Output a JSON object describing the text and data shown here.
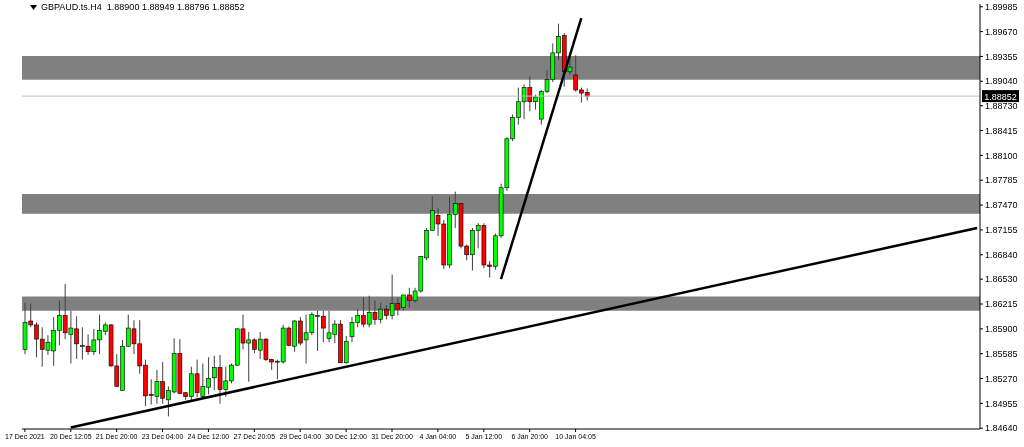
{
  "chart_data": {
    "type": "candlestick",
    "title": "GBPAUD.ts.H4  1.88900 1.88949 1.88796 1.88852",
    "categories": [
      "17 Dec 2021",
      null,
      null,
      null,
      null,
      null,
      null,
      null,
      "20 Dec 12:05",
      null,
      null,
      null,
      null,
      null,
      null,
      null,
      "21 Dec 20:00",
      null,
      null,
      null,
      null,
      null,
      null,
      null,
      "23 Dec 04:00",
      null,
      null,
      null,
      null,
      null,
      null,
      null,
      "24 Dec 12:00",
      null,
      null,
      null,
      null,
      null,
      null,
      null,
      "27 Dec 20:05",
      null,
      null,
      null,
      null,
      null,
      null,
      null,
      "29 Dec 04:00",
      null,
      null,
      null,
      null,
      null,
      null,
      null,
      "30 Dec 12:00",
      null,
      null,
      null,
      null,
      null,
      null,
      null,
      "31 Dec 20:00",
      null,
      null,
      null,
      null,
      null,
      null,
      null,
      "4 Jan 04:00",
      null,
      null,
      null,
      null,
      null,
      null,
      null,
      "5 Jan 12:00",
      null,
      null,
      null,
      null,
      null,
      null,
      null,
      "6 Jan 20:00",
      null,
      null,
      null,
      null,
      null,
      null,
      null,
      "10 Jan 04:05",
      null,
      null,
      null,
      null,
      null,
      null,
      null,
      null,
      null,
      null,
      null,
      null,
      null,
      null,
      null,
      null,
      null,
      null,
      null,
      null,
      null,
      null,
      null,
      null,
      null,
      null,
      null,
      null,
      null,
      null,
      null,
      null,
      null,
      null,
      null,
      null,
      null,
      null,
      null,
      null,
      null,
      null,
      null,
      null,
      null,
      null,
      null,
      null,
      null,
      null,
      null,
      null,
      null,
      null,
      null,
      null,
      null,
      null,
      null,
      null,
      null,
      null,
      null,
      null,
      null,
      null,
      null,
      null,
      null,
      null
    ],
    "ohlc": [
      [
        1.8564,
        1.8623,
        1.8558,
        1.8598
      ],
      [
        1.86,
        1.8622,
        1.8592,
        1.8595
      ],
      [
        1.8595,
        1.8598,
        1.8554,
        1.8577
      ],
      [
        1.8577,
        1.8592,
        1.8542,
        1.8564
      ],
      [
        1.8563,
        1.8582,
        1.8557,
        1.8573
      ],
      [
        1.8562,
        1.8605,
        1.8543,
        1.8588
      ],
      [
        1.8588,
        1.8626,
        1.8569,
        1.8607
      ],
      [
        1.8607,
        1.8647,
        1.8577,
        1.8585
      ],
      [
        1.8583,
        1.8613,
        1.8546,
        1.8591
      ],
      [
        1.859,
        1.8606,
        1.8552,
        1.8571
      ],
      [
        1.8569,
        1.8592,
        1.8551,
        1.8569
      ],
      [
        1.8568,
        1.8583,
        1.8557,
        1.8561
      ],
      [
        1.8561,
        1.859,
        1.8557,
        1.8576
      ],
      [
        1.8576,
        1.8608,
        1.8558,
        1.8588
      ],
      [
        1.8587,
        1.8598,
        1.8582,
        1.8595
      ],
      [
        1.8595,
        1.8596,
        1.8542,
        1.8543
      ],
      [
        1.8543,
        1.8558,
        1.8517,
        1.8517
      ],
      [
        1.8512,
        1.8576,
        1.8512,
        1.8568
      ],
      [
        1.8568,
        1.8608,
        1.8567,
        1.8591
      ],
      [
        1.859,
        1.8601,
        1.8558,
        1.8571
      ],
      [
        1.8571,
        1.8601,
        1.8533,
        1.8543
      ],
      [
        1.8544,
        1.8551,
        1.8492,
        1.8505
      ],
      [
        1.8507,
        1.8526,
        1.8494,
        1.8506
      ],
      [
        1.8504,
        1.8538,
        1.8495,
        1.8523
      ],
      [
        1.8523,
        1.8548,
        1.8495,
        1.8502
      ],
      [
        1.85,
        1.8517,
        1.8479,
        1.8512
      ],
      [
        1.851,
        1.8578,
        1.8508,
        1.8559
      ],
      [
        1.8559,
        1.8577,
        1.8507,
        1.8508
      ],
      [
        1.8509,
        1.851,
        1.85,
        1.8504
      ],
      [
        1.8504,
        1.8542,
        1.8498,
        1.8533
      ],
      [
        1.8533,
        1.8551,
        1.8503,
        1.8509
      ],
      [
        1.8504,
        1.8546,
        1.8502,
        1.8517
      ],
      [
        1.8516,
        1.8554,
        1.8507,
        1.8527
      ],
      [
        1.8528,
        1.8556,
        1.8512,
        1.8541
      ],
      [
        1.8541,
        1.8557,
        1.8495,
        1.8513
      ],
      [
        1.8513,
        1.8542,
        1.8504,
        1.8524
      ],
      [
        1.8524,
        1.8546,
        1.8521,
        1.8544
      ],
      [
        1.8544,
        1.8591,
        1.8543,
        1.859
      ],
      [
        1.859,
        1.8608,
        1.8564,
        1.8572
      ],
      [
        1.8572,
        1.8586,
        1.8523,
        1.8576
      ],
      [
        1.8576,
        1.8578,
        1.8559,
        1.8564
      ],
      [
        1.8563,
        1.8586,
        1.8552,
        1.8577
      ],
      [
        1.8577,
        1.8578,
        1.8549,
        1.8551
      ],
      [
        1.8551,
        1.8552,
        1.8538,
        1.8548
      ],
      [
        1.8549,
        1.8551,
        1.8526,
        1.8549
      ],
      [
        1.8548,
        1.8595,
        1.8546,
        1.8591
      ],
      [
        1.8591,
        1.8593,
        1.8568,
        1.8569
      ],
      [
        1.8568,
        1.8601,
        1.8561,
        1.86
      ],
      [
        1.86,
        1.8605,
        1.8569,
        1.8572
      ],
      [
        1.8576,
        1.8608,
        1.8546,
        1.8585
      ],
      [
        1.8585,
        1.8611,
        1.8582,
        1.8608
      ],
      [
        1.8607,
        1.8613,
        1.8562,
        1.8607
      ],
      [
        1.8606,
        1.8613,
        1.8573,
        1.8591
      ],
      [
        1.8578,
        1.8613,
        1.8573,
        1.8585
      ],
      [
        1.8583,
        1.8601,
        1.8572,
        1.8596
      ],
      [
        1.8596,
        1.8601,
        1.8547,
        1.8547
      ],
      [
        1.8547,
        1.8581,
        1.8546,
        1.8574
      ],
      [
        1.858,
        1.8605,
        1.8573,
        1.8598
      ],
      [
        1.8598,
        1.8615,
        1.8592,
        1.8607
      ],
      [
        1.8607,
        1.863,
        1.8592,
        1.8596
      ],
      [
        1.8596,
        1.8632,
        1.8592,
        1.8611
      ],
      [
        1.8611,
        1.8626,
        1.8595,
        1.8602
      ],
      [
        1.8602,
        1.8623,
        1.8597,
        1.8615
      ],
      [
        1.8615,
        1.862,
        1.8602,
        1.8607
      ],
      [
        1.8607,
        1.8659,
        1.8602,
        1.8622
      ],
      [
        1.8622,
        1.863,
        1.8607,
        1.8615
      ],
      [
        1.8617,
        1.8633,
        1.8613,
        1.8633
      ],
      [
        1.8633,
        1.8642,
        1.8617,
        1.8626
      ],
      [
        1.8626,
        1.8642,
        1.8623,
        1.8638
      ],
      [
        1.8638,
        1.8682,
        1.8636,
        1.8682
      ],
      [
        1.868,
        1.8718,
        1.8677,
        1.8715
      ],
      [
        1.8715,
        1.8758,
        1.8715,
        1.874
      ],
      [
        1.8734,
        1.8743,
        1.8708,
        1.8723
      ],
      [
        1.8723,
        1.8728,
        1.8666,
        1.8671
      ],
      [
        1.8671,
        1.8758,
        1.8667,
        1.8735
      ],
      [
        1.8735,
        1.8764,
        1.8718,
        1.8749
      ],
      [
        1.8749,
        1.8749,
        1.8692,
        1.8695
      ],
      [
        1.8695,
        1.8697,
        1.8677,
        1.8684
      ],
      [
        1.8684,
        1.8718,
        1.8664,
        1.8715
      ],
      [
        1.8715,
        1.8724,
        1.8692,
        1.8721
      ],
      [
        1.8721,
        1.8724,
        1.8667,
        1.8671
      ],
      [
        1.8671,
        1.8676,
        1.8655,
        1.8669
      ],
      [
        1.8669,
        1.8711,
        1.8665,
        1.8708
      ],
      [
        1.8708,
        1.8774,
        1.8705,
        1.8769
      ],
      [
        1.8769,
        1.8833,
        1.8765,
        1.8831
      ],
      [
        1.8831,
        1.8862,
        1.8828,
        1.8858
      ],
      [
        1.8858,
        1.8896,
        1.8849,
        1.8878
      ],
      [
        1.8878,
        1.89,
        1.8856,
        1.8896
      ],
      [
        1.8896,
        1.891,
        1.8866,
        1.8878
      ],
      [
        1.8878,
        1.8887,
        1.8868,
        1.8884
      ],
      [
        1.8856,
        1.8893,
        1.8849,
        1.8891
      ],
      [
        1.8891,
        1.8918,
        1.8889,
        1.8906
      ],
      [
        1.8906,
        1.8952,
        1.8903,
        1.894
      ],
      [
        1.894,
        1.8977,
        1.8931,
        1.8961
      ],
      [
        1.8962,
        1.8965,
        1.8897,
        1.8916
      ],
      [
        1.8916,
        1.8933,
        1.8912,
        1.8922
      ],
      [
        1.8912,
        1.8937,
        1.8891,
        1.8893
      ],
      [
        1.8893,
        1.8896,
        1.8877,
        1.8889
      ],
      [
        1.889,
        1.88949,
        1.88796,
        1.88852
      ],
      null,
      null,
      null,
      null,
      null,
      null,
      null,
      null,
      null,
      null,
      null,
      null,
      null,
      null,
      null,
      null,
      null,
      null,
      null,
      null,
      null,
      null,
      null,
      null,
      null,
      null,
      null,
      null,
      null,
      null,
      null,
      null,
      null,
      null,
      null,
      null,
      null,
      null,
      null,
      null,
      null,
      null,
      null,
      null,
      null,
      null,
      null,
      null,
      null,
      null,
      null,
      null,
      null,
      null,
      null,
      null,
      null,
      null,
      null,
      null,
      null,
      null,
      null,
      null,
      null,
      null,
      null,
      null
    ],
    "colors": [
      "#00ff00",
      "#ff0000",
      "#ff0000",
      "#ff0000",
      "#00ff00",
      "#00ff00",
      "#00ff00",
      "#ff0000",
      "#00ff00",
      "#ff0000",
      "#00ff00",
      "#ff0000",
      "#00ff00",
      "#00ff00",
      "#00ff00",
      "#ff0000",
      "#ff0000",
      "#00ff00",
      "#00ff00",
      "#ff0000",
      "#ff0000",
      "#ff0000",
      "#ff0000",
      "#00ff00",
      "#ff0000",
      "#00ff00",
      "#00ff00",
      "#ff0000",
      "#ff0000",
      "#00ff00",
      "#ff0000",
      "#00ff00",
      "#00ff00",
      "#00ff00",
      "#ff0000",
      "#00ff00",
      "#00ff00",
      "#00ff00",
      "#ff0000",
      "#00ff00",
      "#ff0000",
      "#00ff00",
      "#ff0000",
      "#ff0000",
      "#00ff00",
      "#00ff00",
      "#ff0000",
      "#00ff00",
      "#ff0000",
      "#00ff00",
      "#00ff00",
      "#00ff00",
      "#ff0000",
      "#00ff00",
      "#00ff00",
      "#ff0000",
      "#00ff00",
      "#00ff00",
      "#00ff00",
      "#ff0000",
      "#00ff00",
      "#ff0000",
      "#00ff00",
      "#ff0000",
      "#00ff00",
      "#ff0000",
      "#00ff00",
      "#ff0000",
      "#00ff00",
      "#00ff00",
      "#00ff00",
      "#00ff00",
      "#ff0000",
      "#ff0000",
      "#00ff00",
      "#00ff00",
      "#ff0000",
      "#ff0000",
      "#00ff00",
      "#00ff00",
      "#ff0000",
      "#ff0000",
      "#00ff00",
      "#00ff00",
      "#00ff00",
      "#00ff00",
      "#00ff00",
      "#00ff00",
      "#ff0000",
      "#00ff00",
      "#00ff00",
      "#00ff00",
      "#00ff00",
      "#00ff00",
      "#ff0000",
      "#00ff00",
      "#ff0000",
      "#ff0000",
      "#ff0000",
      null,
      null,
      null,
      null,
      null,
      null,
      null,
      null,
      null,
      null,
      null,
      null,
      null,
      null,
      null,
      null,
      null,
      null,
      null,
      null,
      null,
      null,
      null,
      null,
      null,
      null,
      null,
      null,
      null,
      null,
      null,
      null,
      null,
      null,
      null,
      null,
      null,
      null,
      null,
      null,
      null,
      null,
      null,
      null,
      null,
      null,
      null,
      null,
      null,
      null,
      null,
      null,
      null,
      null,
      null,
      null,
      null,
      null,
      null,
      null,
      null,
      null,
      null,
      null,
      null,
      null,
      null,
      null
    ],
    "series": [
      {
        "type": "line",
        "color": "#000000",
        "values": [
          null,
          null,
          null,
          null,
          null,
          null,
          null,
          null,
          1.8465,
          null,
          null,
          null,
          null,
          null,
          null,
          null,
          null,
          null,
          null,
          null,
          null,
          null,
          null,
          null,
          null,
          null,
          null,
          null,
          null,
          null,
          null,
          null,
          null,
          null,
          null,
          null,
          null,
          null,
          null,
          null,
          null,
          null,
          null,
          null,
          null,
          null,
          null,
          null,
          null,
          null,
          null,
          null,
          null,
          null,
          null,
          null,
          null,
          null,
          null,
          null,
          null,
          null,
          null,
          null,
          null,
          null,
          null,
          null,
          null,
          null,
          null,
          null,
          null,
          null,
          null,
          null,
          null,
          null,
          null,
          null,
          null,
          null,
          null,
          null,
          null,
          null,
          null,
          null,
          null,
          null,
          null,
          null,
          null,
          null,
          null,
          null,
          null,
          null,
          null,
          null,
          null,
          null,
          null,
          null,
          null,
          null,
          null,
          null,
          null,
          null,
          null,
          null,
          null,
          null,
          null,
          null,
          null,
          null,
          null,
          null,
          null,
          null,
          null,
          null,
          null,
          null,
          null,
          null,
          null,
          null,
          null,
          null,
          null,
          null,
          null,
          null,
          null,
          null,
          null,
          null,
          null,
          null,
          null,
          null,
          null,
          null,
          null,
          null,
          null,
          null,
          null,
          null,
          null,
          null,
          null,
          null,
          null,
          null,
          null,
          null,
          null,
          null,
          null,
          null,
          null,
          null,
          1.8718
        ]
      },
      {
        "type": "line",
        "color": "#000000",
        "values": [
          null,
          null,
          null,
          null,
          null,
          null,
          null,
          null,
          null,
          null,
          null,
          null,
          null,
          null,
          null,
          null,
          null,
          null,
          null,
          null,
          null,
          null,
          null,
          null,
          null,
          null,
          null,
          null,
          null,
          null,
          null,
          null,
          null,
          null,
          null,
          null,
          null,
          null,
          null,
          null,
          null,
          null,
          null,
          null,
          null,
          null,
          null,
          null,
          null,
          null,
          null,
          null,
          null,
          null,
          null,
          null,
          null,
          null,
          null,
          null,
          null,
          null,
          null,
          null,
          null,
          null,
          null,
          null,
          null,
          null,
          null,
          null,
          null,
          null,
          null,
          null,
          null,
          null,
          null,
          null,
          null,
          null,
          null,
          1.8653,
          null,
          null,
          null,
          null,
          null,
          null,
          null,
          null,
          null,
          null,
          null,
          null,
          null,
          1.8984,
          null,
          null,
          null,
          null,
          null,
          null,
          null,
          null,
          null,
          null,
          null,
          null,
          null,
          null,
          null,
          null,
          null,
          null,
          null,
          null,
          null,
          null,
          null,
          null,
          null,
          null,
          null,
          null,
          null,
          null,
          null,
          null,
          null,
          null,
          null,
          null,
          null,
          null,
          null,
          null,
          null,
          null,
          null,
          null,
          null,
          null,
          null,
          null,
          null,
          null,
          null,
          null,
          null,
          null,
          null,
          null,
          null,
          null,
          null,
          null,
          null,
          null,
          null,
          null,
          null,
          null,
          null,
          null,
          null
        ]
      }
    ],
    "bands": [
      {
        "axis": "y",
        "from": 1.8906,
        "to": 1.8936,
        "color": "#808080"
      },
      {
        "axis": "y",
        "from": 1.8736,
        "to": 1.8761,
        "color": "#808080"
      },
      {
        "axis": "y",
        "from": 1.8613,
        "to": 1.8631,
        "color": "#808080"
      }
    ],
    "ref_lines": [
      {
        "axis": "y",
        "value": 1.88852,
        "label": "1.88852",
        "color": "#c0c0c0"
      }
    ],
    "ylim": [
      1.8463,
      1.9002
    ],
    "yticks": [
      {
        "value": 1.8464,
        "label": "1.84640"
      },
      {
        "value": 1.84955,
        "label": "1.84955"
      },
      {
        "value": 1.8527,
        "label": "1.85270"
      },
      {
        "value": 1.85585,
        "label": "1.85585"
      },
      {
        "value": 1.859,
        "label": "1.85900"
      },
      {
        "value": 1.86215,
        "label": "1.86215"
      },
      {
        "value": 1.8653,
        "label": "1.86530"
      },
      {
        "value": 1.8684,
        "label": "1.86840"
      },
      {
        "value": 1.87155,
        "label": "1.87155"
      },
      {
        "value": 1.8747,
        "label": "1.87470"
      },
      {
        "value": 1.87785,
        "label": "1.87785"
      },
      {
        "value": 1.881,
        "label": "1.88100"
      },
      {
        "value": 1.88415,
        "label": "1.88415"
      },
      {
        "value": 1.8873,
        "label": "1.88730"
      },
      {
        "value": 1.8904,
        "label": "1.89040"
      },
      {
        "value": 1.89355,
        "label": "1.89355"
      },
      {
        "value": 1.8967,
        "label": "1.89670"
      },
      {
        "value": 1.89985,
        "label": "1.89985"
      }
    ]
  }
}
